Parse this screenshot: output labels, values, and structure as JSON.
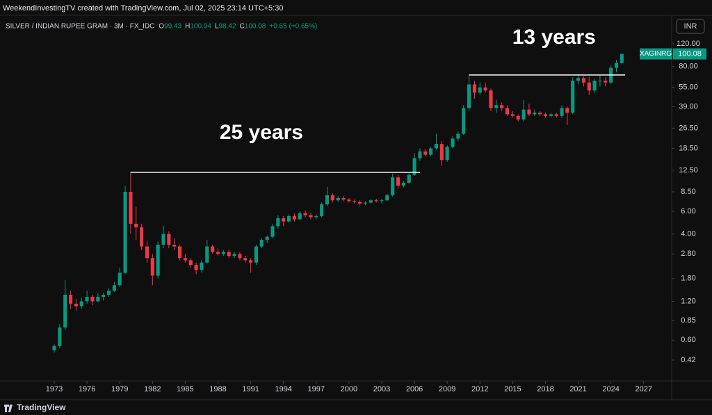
{
  "header": {
    "credit": "WeekendInvestingTV created with TradingView.com, Jul 02, 2025 23:14 UTC+5:30",
    "symbol": "SILVER / INDIAN RUPEE GRAM · 3M · FX_IDC",
    "ohlc": [
      {
        "label": "O",
        "value": 99.43
      },
      {
        "label": "H",
        "value": 100.94
      },
      {
        "label": "L",
        "value": 98.42
      },
      {
        "label": "C",
        "value": 100.08
      }
    ],
    "change": "+0.65 (+0.65%)",
    "currency": "INR"
  },
  "footer": {
    "brand": "TradingView"
  },
  "chart_data": {
    "type": "candlestick",
    "log_scale": true,
    "up_color": "#089981",
    "down_color": "#f23645",
    "xlim": [
      1968.03,
      2029.5
    ],
    "xticks": [
      1973,
      1976,
      1979,
      1982,
      1985,
      1988,
      1991,
      1994,
      1997,
      2000,
      2003,
      2006,
      2009,
      2012,
      2015,
      2018,
      2021,
      2024,
      2027
    ],
    "ylim": [
      0.3,
      180.7
    ],
    "yticks": [
      0.42,
      {
        "value": 0.6,
        "label": "0.60"
      },
      0.85,
      {
        "value": 1.2,
        "label": "1.20"
      },
      {
        "value": 1.8,
        "label": "1.80"
      },
      {
        "value": 2.8,
        "label": "2.80"
      },
      {
        "value": 4,
        "label": "4.00"
      },
      {
        "value": 6,
        "label": "6.00"
      },
      {
        "value": 8.5,
        "label": "8.50"
      },
      {
        "value": 12.5,
        "label": "12.50"
      },
      {
        "value": 18.5,
        "label": "18.50"
      },
      {
        "value": 26.5,
        "label": "26.50"
      },
      {
        "value": 39,
        "label": "39.00"
      },
      {
        "value": 55,
        "label": "55.00"
      },
      {
        "value": 80,
        "label": "80.00"
      },
      {
        "value": 120,
        "label": "120.00"
      }
    ],
    "last": {
      "label": "XAGINRG",
      "value": 100.08,
      "color": "#089981"
    },
    "annotations": [
      {
        "text": "25 years",
        "x0": 1980.0,
        "x1": 2006.5,
        "level": 12.05
      },
      {
        "text": "13 years",
        "x0": 2011.0,
        "x1": 2025.3,
        "level": 68.6
      }
    ],
    "candles": [
      {
        "x": 1973,
        "o": 0.5,
        "h": 0.56,
        "l": 0.48,
        "c": 0.54
      },
      {
        "x": 1973.5,
        "o": 0.54,
        "h": 0.8,
        "l": 0.52,
        "c": 0.75
      },
      {
        "x": 1974,
        "o": 0.75,
        "h": 1.75,
        "l": 0.72,
        "c": 1.35
      },
      {
        "x": 1974.5,
        "o": 1.35,
        "h": 1.45,
        "l": 1.05,
        "c": 1.15
      },
      {
        "x": 1975,
        "o": 1.15,
        "h": 1.25,
        "l": 1.02,
        "c": 1.1
      },
      {
        "x": 1975.5,
        "o": 1.1,
        "h": 1.28,
        "l": 1.05,
        "c": 1.2
      },
      {
        "x": 1976,
        "o": 1.2,
        "h": 1.45,
        "l": 1.15,
        "c": 1.3
      },
      {
        "x": 1976.5,
        "o": 1.3,
        "h": 1.35,
        "l": 1.12,
        "c": 1.2
      },
      {
        "x": 1977,
        "o": 1.2,
        "h": 1.38,
        "l": 1.18,
        "c": 1.3
      },
      {
        "x": 1977.5,
        "o": 1.3,
        "h": 1.4,
        "l": 1.22,
        "c": 1.35
      },
      {
        "x": 1978,
        "o": 1.35,
        "h": 1.52,
        "l": 1.3,
        "c": 1.45
      },
      {
        "x": 1978.5,
        "o": 1.45,
        "h": 1.7,
        "l": 1.42,
        "c": 1.6
      },
      {
        "x": 1979,
        "o": 1.6,
        "h": 2.2,
        "l": 1.55,
        "c": 2
      },
      {
        "x": 1979.5,
        "o": 2,
        "h": 9.5,
        "l": 1.95,
        "c": 8.5
      },
      {
        "x": 1980,
        "o": 8.5,
        "h": 12.2,
        "l": 4,
        "c": 4.8
      },
      {
        "x": 1980.5,
        "o": 4.8,
        "h": 6.5,
        "l": 3.6,
        "c": 4.5
      },
      {
        "x": 1981,
        "o": 4.5,
        "h": 4.8,
        "l": 3,
        "c": 3.2
      },
      {
        "x": 1981.5,
        "o": 3.2,
        "h": 3.5,
        "l": 2.4,
        "c": 2.6
      },
      {
        "x": 1982,
        "o": 2.6,
        "h": 2.8,
        "l": 1.6,
        "c": 1.9
      },
      {
        "x": 1982.5,
        "o": 1.9,
        "h": 3.5,
        "l": 1.8,
        "c": 3.3
      },
      {
        "x": 1983,
        "o": 3.3,
        "h": 4.6,
        "l": 3.1,
        "c": 4
      },
      {
        "x": 1983.5,
        "o": 4,
        "h": 4.2,
        "l": 3.1,
        "c": 3.3
      },
      {
        "x": 1984,
        "o": 3.3,
        "h": 3.7,
        "l": 3,
        "c": 3.2
      },
      {
        "x": 1984.5,
        "o": 3.2,
        "h": 3.3,
        "l": 2.5,
        "c": 2.6
      },
      {
        "x": 1985,
        "o": 2.6,
        "h": 2.8,
        "l": 2.4,
        "c": 2.5
      },
      {
        "x": 1985.5,
        "o": 2.5,
        "h": 2.6,
        "l": 2.2,
        "c": 2.3
      },
      {
        "x": 1986,
        "o": 2.3,
        "h": 2.4,
        "l": 1.95,
        "c": 2.1
      },
      {
        "x": 1986.5,
        "o": 2.1,
        "h": 2.5,
        "l": 2,
        "c": 2.4
      },
      {
        "x": 1987,
        "o": 2.4,
        "h": 3.6,
        "l": 2.35,
        "c": 3.2
      },
      {
        "x": 1987.5,
        "o": 3.2,
        "h": 3.3,
        "l": 2.8,
        "c": 2.9
      },
      {
        "x": 1988,
        "o": 2.9,
        "h": 3.1,
        "l": 2.7,
        "c": 2.8
      },
      {
        "x": 1988.5,
        "o": 2.8,
        "h": 3,
        "l": 2.7,
        "c": 2.9
      },
      {
        "x": 1989,
        "o": 2.9,
        "h": 3,
        "l": 2.6,
        "c": 2.7
      },
      {
        "x": 1989.5,
        "o": 2.7,
        "h": 2.9,
        "l": 2.6,
        "c": 2.8
      },
      {
        "x": 1990,
        "o": 2.8,
        "h": 2.9,
        "l": 2.5,
        "c": 2.6
      },
      {
        "x": 1990.5,
        "o": 2.6,
        "h": 2.7,
        "l": 2.4,
        "c": 2.5
      },
      {
        "x": 1991,
        "o": 2.5,
        "h": 2.6,
        "l": 2,
        "c": 2.4
      },
      {
        "x": 1991.5,
        "o": 2.4,
        "h": 3.3,
        "l": 2.3,
        "c": 3.2
      },
      {
        "x": 1992,
        "o": 3.2,
        "h": 3.7,
        "l": 3.1,
        "c": 3.6
      },
      {
        "x": 1992.5,
        "o": 3.6,
        "h": 3.9,
        "l": 3.4,
        "c": 3.8
      },
      {
        "x": 1993,
        "o": 3.8,
        "h": 4.8,
        "l": 3.7,
        "c": 4.6
      },
      {
        "x": 1993.5,
        "o": 4.6,
        "h": 5.6,
        "l": 4.4,
        "c": 5.3
      },
      {
        "x": 1994,
        "o": 5.3,
        "h": 5.5,
        "l": 4.6,
        "c": 5
      },
      {
        "x": 1994.5,
        "o": 5,
        "h": 5.7,
        "l": 4.9,
        "c": 5.5
      },
      {
        "x": 1995,
        "o": 5.5,
        "h": 5.8,
        "l": 5,
        "c": 5.2
      },
      {
        "x": 1995.5,
        "o": 5.2,
        "h": 6,
        "l": 5.1,
        "c": 5.8
      },
      {
        "x": 1996,
        "o": 5.8,
        "h": 6.1,
        "l": 5.4,
        "c": 5.6
      },
      {
        "x": 1996.5,
        "o": 5.6,
        "h": 5.8,
        "l": 5.2,
        "c": 5.4
      },
      {
        "x": 1997,
        "o": 5.4,
        "h": 5.7,
        "l": 5.2,
        "c": 5.5
      },
      {
        "x": 1997.5,
        "o": 5.5,
        "h": 7,
        "l": 5.4,
        "c": 6.8
      },
      {
        "x": 1998,
        "o": 6.8,
        "h": 9.3,
        "l": 6.6,
        "c": 8
      },
      {
        "x": 1998.5,
        "o": 8,
        "h": 8.3,
        "l": 7,
        "c": 7.3
      },
      {
        "x": 1999,
        "o": 7.3,
        "h": 7.9,
        "l": 7.1,
        "c": 7.6
      },
      {
        "x": 1999.5,
        "o": 7.6,
        "h": 7.9,
        "l": 7.2,
        "c": 7.4
      },
      {
        "x": 2000,
        "o": 7.4,
        "h": 7.6,
        "l": 7,
        "c": 7.2
      },
      {
        "x": 2000.5,
        "o": 7.2,
        "h": 7.4,
        "l": 6.9,
        "c": 7.1
      },
      {
        "x": 2001,
        "o": 7.1,
        "h": 7.3,
        "l": 6.7,
        "c": 6.9
      },
      {
        "x": 2001.5,
        "o": 6.9,
        "h": 7.2,
        "l": 6.7,
        "c": 7
      },
      {
        "x": 2002,
        "o": 7,
        "h": 7.5,
        "l": 6.9,
        "c": 7.3
      },
      {
        "x": 2002.5,
        "o": 7.3,
        "h": 7.5,
        "l": 7,
        "c": 7.2
      },
      {
        "x": 2003,
        "o": 7.2,
        "h": 7.5,
        "l": 6.9,
        "c": 7.3
      },
      {
        "x": 2003.5,
        "o": 7.3,
        "h": 8.2,
        "l": 7.2,
        "c": 8
      },
      {
        "x": 2004,
        "o": 8,
        "h": 11.8,
        "l": 7.8,
        "c": 11
      },
      {
        "x": 2004.5,
        "o": 11,
        "h": 11.5,
        "l": 9,
        "c": 9.5
      },
      {
        "x": 2005,
        "o": 9.5,
        "h": 10.3,
        "l": 9.2,
        "c": 10
      },
      {
        "x": 2005.5,
        "o": 10,
        "h": 11.8,
        "l": 9.8,
        "c": 11.5
      },
      {
        "x": 2006,
        "o": 11.5,
        "h": 17,
        "l": 11.3,
        "c": 15.5
      },
      {
        "x": 2006.5,
        "o": 15.5,
        "h": 18.5,
        "l": 14.8,
        "c": 17.5
      },
      {
        "x": 2007,
        "o": 17.5,
        "h": 18.2,
        "l": 16,
        "c": 16.5
      },
      {
        "x": 2007.5,
        "o": 16.5,
        "h": 19,
        "l": 16,
        "c": 18.5
      },
      {
        "x": 2008,
        "o": 18.5,
        "h": 24,
        "l": 18,
        "c": 20
      },
      {
        "x": 2008.5,
        "o": 20,
        "h": 21,
        "l": 13.5,
        "c": 15
      },
      {
        "x": 2009,
        "o": 15,
        "h": 19.5,
        "l": 14.5,
        "c": 19
      },
      {
        "x": 2009.5,
        "o": 19,
        "h": 23,
        "l": 18.5,
        "c": 22
      },
      {
        "x": 2010,
        "o": 22,
        "h": 25,
        "l": 21,
        "c": 24
      },
      {
        "x": 2010.5,
        "o": 24,
        "h": 40,
        "l": 23.5,
        "c": 38
      },
      {
        "x": 2011,
        "o": 38,
        "h": 68,
        "l": 36,
        "c": 58
      },
      {
        "x": 2011.5,
        "o": 58,
        "h": 62,
        "l": 45,
        "c": 50
      },
      {
        "x": 2012,
        "o": 50,
        "h": 60,
        "l": 48,
        "c": 55
      },
      {
        "x": 2012.5,
        "o": 55,
        "h": 60,
        "l": 50,
        "c": 52
      },
      {
        "x": 2013,
        "o": 52,
        "h": 54,
        "l": 36,
        "c": 38
      },
      {
        "x": 2013.5,
        "o": 38,
        "h": 44,
        "l": 35,
        "c": 40
      },
      {
        "x": 2014,
        "o": 40,
        "h": 42,
        "l": 36,
        "c": 38
      },
      {
        "x": 2014.5,
        "o": 38,
        "h": 40,
        "l": 33,
        "c": 34
      },
      {
        "x": 2015,
        "o": 34,
        "h": 36,
        "l": 32,
        "c": 33
      },
      {
        "x": 2015.5,
        "o": 33,
        "h": 34,
        "l": 30,
        "c": 31
      },
      {
        "x": 2016,
        "o": 31,
        "h": 44,
        "l": 30,
        "c": 37
      },
      {
        "x": 2016.5,
        "o": 37,
        "h": 41,
        "l": 33,
        "c": 34
      },
      {
        "x": 2017,
        "o": 34,
        "h": 37,
        "l": 33,
        "c": 35
      },
      {
        "x": 2017.5,
        "o": 35,
        "h": 36,
        "l": 33,
        "c": 34
      },
      {
        "x": 2018,
        "o": 34,
        "h": 35,
        "l": 32,
        "c": 33
      },
      {
        "x": 2018.5,
        "o": 33,
        "h": 35,
        "l": 32,
        "c": 34
      },
      {
        "x": 2019,
        "o": 34,
        "h": 35,
        "l": 32,
        "c": 33
      },
      {
        "x": 2019.5,
        "o": 33,
        "h": 40,
        "l": 32,
        "c": 38
      },
      {
        "x": 2020,
        "o": 38,
        "h": 39,
        "l": 28,
        "c": 35
      },
      {
        "x": 2020.5,
        "o": 35,
        "h": 66,
        "l": 34,
        "c": 62
      },
      {
        "x": 2021,
        "o": 62,
        "h": 70,
        "l": 58,
        "c": 65
      },
      {
        "x": 2021.5,
        "o": 65,
        "h": 67,
        "l": 56,
        "c": 60
      },
      {
        "x": 2022,
        "o": 60,
        "h": 66,
        "l": 48,
        "c": 52
      },
      {
        "x": 2022.5,
        "o": 52,
        "h": 64,
        "l": 50,
        "c": 62
      },
      {
        "x": 2023,
        "o": 62,
        "h": 68,
        "l": 56,
        "c": 62
      },
      {
        "x": 2023.5,
        "o": 62,
        "h": 66,
        "l": 56,
        "c": 60
      },
      {
        "x": 2024,
        "o": 60,
        "h": 82,
        "l": 58,
        "c": 78
      },
      {
        "x": 2024.5,
        "o": 78,
        "h": 90,
        "l": 72,
        "c": 85
      },
      {
        "x": 2025,
        "o": 85,
        "h": 100.94,
        "l": 83,
        "c": 100.08
      }
    ]
  }
}
